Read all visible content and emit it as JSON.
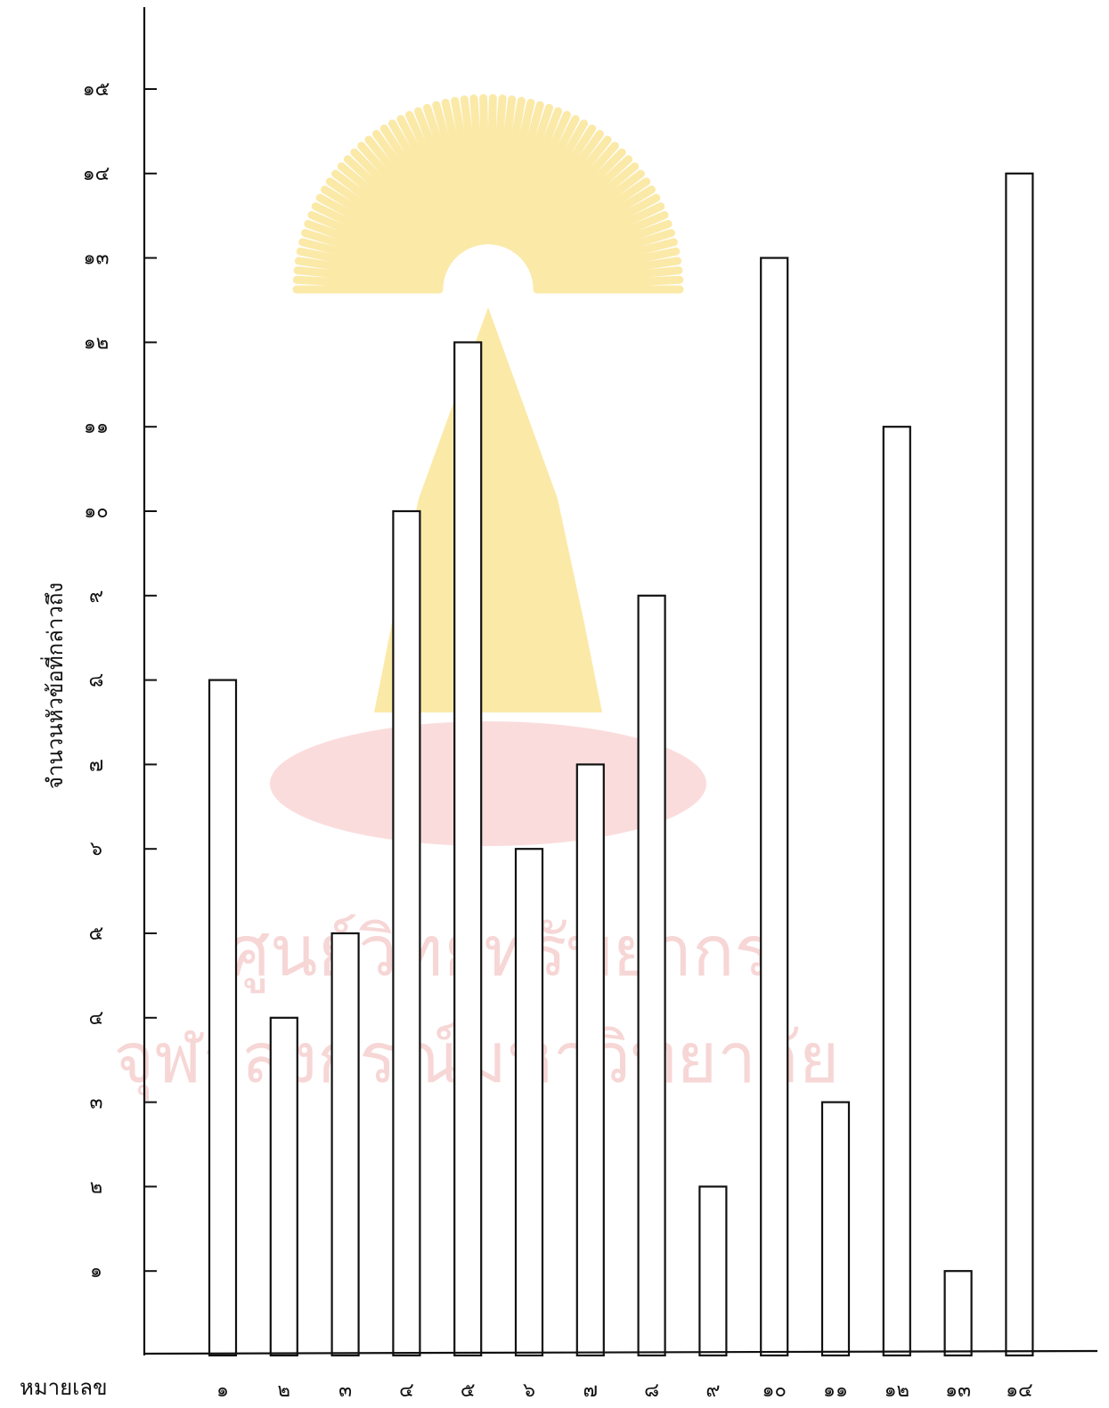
{
  "watermark": {
    "line1": "ศูนย์วิทยทรัพยากร",
    "line2": "จุฬาลงกรณ์มหาวิทยาลัย",
    "color": "#f7d6d6",
    "emblem_color": "#fbe9a8",
    "base_color": "#fbdcdc"
  },
  "chart_data": {
    "type": "bar",
    "title": "",
    "xlabel": "หมายเลข",
    "ylabel": "จำนวนหัวข้อที่กล่าวถึง",
    "ylim": [
      0,
      15
    ],
    "grid": false,
    "legend": "none",
    "categories": [
      "๑",
      "๒",
      "๓",
      "๔",
      "๕",
      "๖",
      "๗",
      "๘",
      "๙",
      "๑๐",
      "๑๑",
      "๑๒",
      "๑๓",
      "๑๔"
    ],
    "y_ticks": [
      {
        "value": 1,
        "label": "๑"
      },
      {
        "value": 2,
        "label": "๒"
      },
      {
        "value": 3,
        "label": "๓"
      },
      {
        "value": 4,
        "label": "๔"
      },
      {
        "value": 5,
        "label": "๕"
      },
      {
        "value": 6,
        "label": "๖"
      },
      {
        "value": 7,
        "label": "๗"
      },
      {
        "value": 8,
        "label": "๘"
      },
      {
        "value": 9,
        "label": "๙"
      },
      {
        "value": 10,
        "label": "๑๐"
      },
      {
        "value": 11,
        "label": "๑๑"
      },
      {
        "value": 12,
        "label": "๑๒"
      },
      {
        "value": 13,
        "label": "๑๓"
      },
      {
        "value": 14,
        "label": "๑๔"
      },
      {
        "value": 15,
        "label": "๑๕"
      }
    ],
    "values": [
      8,
      4,
      5,
      10,
      12,
      6,
      7,
      9,
      2,
      13,
      3,
      11,
      1,
      14
    ],
    "bar_color": "#ffffff",
    "line_color": "#111111"
  }
}
